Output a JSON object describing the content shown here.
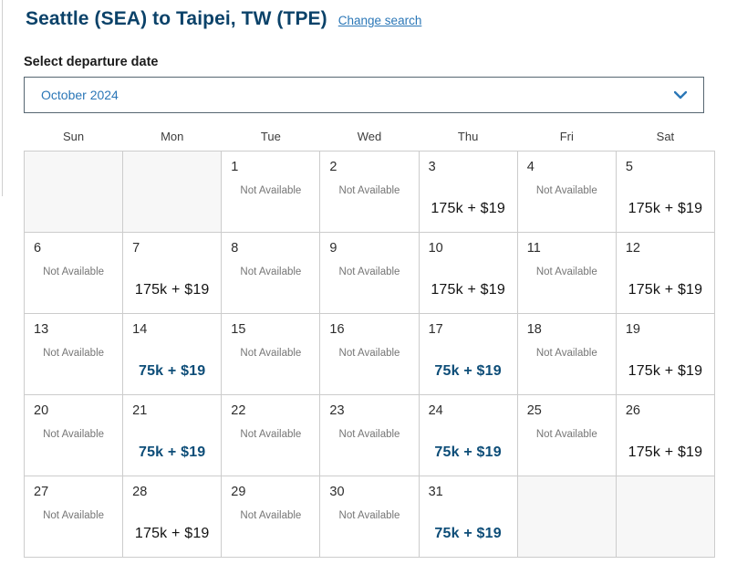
{
  "colors": {
    "navy": "#0b4269",
    "link-blue": "#2b77b7",
    "saver-blue": "#0d4d78",
    "standard-price": "#121212",
    "unavailable-gray": "#767676",
    "cell-border": "#cccccc",
    "empty-cell-bg": "#f7f7f7",
    "select-border": "#566671"
  },
  "header": {
    "title": "Seattle (SEA) to Taipei, TW (TPE)",
    "change_search_label": "Change search"
  },
  "departure_picker": {
    "label": "Select departure date",
    "selected_month": "October 2024"
  },
  "calendar": {
    "weekdays": [
      "Sun",
      "Mon",
      "Tue",
      "Wed",
      "Thu",
      "Fri",
      "Sat"
    ],
    "not_available_label": "Not Available",
    "weeks": [
      [
        {
          "type": "empty"
        },
        {
          "type": "empty"
        },
        {
          "day": "1",
          "status": "unavailable"
        },
        {
          "day": "2",
          "status": "unavailable"
        },
        {
          "day": "3",
          "status": "available",
          "price": "175k + $19",
          "tier": "standard"
        },
        {
          "day": "4",
          "status": "unavailable"
        },
        {
          "day": "5",
          "status": "available",
          "price": "175k + $19",
          "tier": "standard"
        }
      ],
      [
        {
          "day": "6",
          "status": "unavailable"
        },
        {
          "day": "7",
          "status": "available",
          "price": "175k + $19",
          "tier": "standard"
        },
        {
          "day": "8",
          "status": "unavailable"
        },
        {
          "day": "9",
          "status": "unavailable"
        },
        {
          "day": "10",
          "status": "available",
          "price": "175k + $19",
          "tier": "standard"
        },
        {
          "day": "11",
          "status": "unavailable"
        },
        {
          "day": "12",
          "status": "available",
          "price": "175k + $19",
          "tier": "standard"
        }
      ],
      [
        {
          "day": "13",
          "status": "unavailable"
        },
        {
          "day": "14",
          "status": "available",
          "price": "75k + $19",
          "tier": "saver"
        },
        {
          "day": "15",
          "status": "unavailable"
        },
        {
          "day": "16",
          "status": "unavailable"
        },
        {
          "day": "17",
          "status": "available",
          "price": "75k + $19",
          "tier": "saver"
        },
        {
          "day": "18",
          "status": "unavailable"
        },
        {
          "day": "19",
          "status": "available",
          "price": "175k + $19",
          "tier": "standard"
        }
      ],
      [
        {
          "day": "20",
          "status": "unavailable"
        },
        {
          "day": "21",
          "status": "available",
          "price": "75k + $19",
          "tier": "saver"
        },
        {
          "day": "22",
          "status": "unavailable"
        },
        {
          "day": "23",
          "status": "unavailable"
        },
        {
          "day": "24",
          "status": "available",
          "price": "75k + $19",
          "tier": "saver"
        },
        {
          "day": "25",
          "status": "unavailable"
        },
        {
          "day": "26",
          "status": "available",
          "price": "175k + $19",
          "tier": "standard"
        }
      ],
      [
        {
          "day": "27",
          "status": "unavailable"
        },
        {
          "day": "28",
          "status": "available",
          "price": "175k + $19",
          "tier": "standard"
        },
        {
          "day": "29",
          "status": "unavailable"
        },
        {
          "day": "30",
          "status": "unavailable"
        },
        {
          "day": "31",
          "status": "available",
          "price": "75k + $19",
          "tier": "saver"
        },
        {
          "type": "empty"
        },
        {
          "type": "empty"
        }
      ]
    ]
  }
}
